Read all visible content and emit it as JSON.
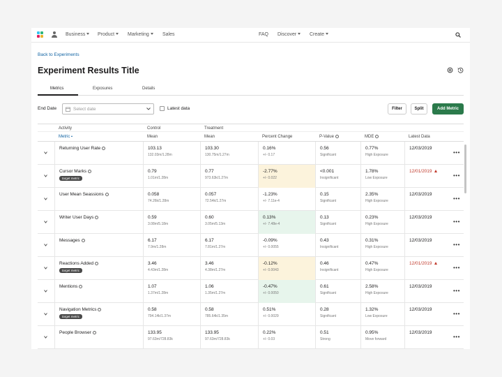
{
  "nav": {
    "left": [
      "Business",
      "Product",
      "Marketing",
      "Sales"
    ],
    "right": [
      "FAQ",
      "Discover",
      "Create"
    ],
    "logo_colors": [
      "#e01e5a",
      "#36c5f0",
      "#2eb67d",
      "#ecb22e"
    ]
  },
  "breadcrumb": "Back to Experiments",
  "page_title": "Experiment Results Title",
  "tabs": [
    "Metrics",
    "Exposures",
    "Details"
  ],
  "filters": {
    "end_date_label": "End Date",
    "date_placeholder": "Select date",
    "latest_data_label": "Latest data",
    "filter_label": "Filter",
    "split_label": "Split",
    "add_metric_label": "Add Metric"
  },
  "table": {
    "groups": [
      "Activity",
      "Control",
      "Treatment"
    ],
    "headers": [
      "Metric",
      "Mean",
      "Mean",
      "Percent Change",
      "P-Value",
      "MDE",
      "Latest Data"
    ],
    "badge_text": "target metric",
    "rows": [
      {
        "metric": "Returning User Rate",
        "target": false,
        "c_mean": "103.13",
        "c_sub": "132.03m/1.28m",
        "t_mean": "103.30",
        "t_sub": "130.75m/1.27m",
        "pct": "0.16%",
        "pct_sub": "+/- 0.17",
        "pct_state": "none",
        "p": "0.56",
        "p_sub": "Significant",
        "mde": "0.77%",
        "mde_sub": "High Exposure",
        "date": "12/03/2019",
        "date_warn": false
      },
      {
        "metric": "Cursor Marks",
        "target": true,
        "c_mean": "0.79",
        "c_sub": "1.01m/1.28m",
        "t_mean": "0.77",
        "t_sub": "973.63k/1.27m",
        "pct": "-2.77%",
        "pct_sub": "+/- 0.022",
        "pct_state": "warn",
        "p": "<0.001",
        "p_sub": "Insignificant",
        "mde": "1.78%",
        "mde_sub": "Low Exposure",
        "date": "12/01/2019",
        "date_warn": true
      },
      {
        "metric": "User Mean Seassions",
        "target": false,
        "c_mean": "0.058",
        "c_sub": "74.26k/1.28m",
        "t_mean": "0.057",
        "t_sub": "72.54k/1.27m",
        "pct": "-1.23%",
        "pct_sub": "+/- 7.11e-4",
        "pct_state": "none",
        "p": "0.15",
        "p_sub": "Significant",
        "mde": "2.35%",
        "mde_sub": "High Exposure",
        "date": "12/03/2019",
        "date_warn": false
      },
      {
        "metric": "Writer User Days",
        "target": false,
        "c_mean": "0.59",
        "c_sub": "3.08m/5.18m",
        "t_mean": "0.60",
        "t_sub": "3.05m/5.13m",
        "pct": "0.13%",
        "pct_sub": "+/- 7.48e-4",
        "pct_state": "good",
        "p": "0.13",
        "p_sub": "Significant",
        "mde": "0.23%",
        "mde_sub": "High Exposure",
        "date": "12/03/2019",
        "date_warn": false
      },
      {
        "metric": "Messages",
        "target": false,
        "c_mean": "6.17",
        "c_sub": "7.9m/1.28m",
        "t_mean": "6.17",
        "t_sub": "7.81m/1.27m",
        "pct": "-0.09%",
        "pct_sub": "+/- 0.0055",
        "pct_state": "none",
        "p": "0.43",
        "p_sub": "Insignificant",
        "mde": "0.31%",
        "mde_sub": "High Exposure",
        "date": "12/03/2019",
        "date_warn": false
      },
      {
        "metric": "Reactions Added",
        "target": true,
        "c_mean": "3.46",
        "c_sub": "4.43m/1.28m",
        "t_mean": "3.46",
        "t_sub": "4.38m/1.27m",
        "pct": "-0.12%",
        "pct_sub": "+/- 0.0043",
        "pct_state": "warn",
        "p": "0.46",
        "p_sub": "Insignificant",
        "mde": "0.47%",
        "mde_sub": "High Exposure",
        "date": "12/01/2019",
        "date_warn": true
      },
      {
        "metric": "Mentions",
        "target": false,
        "c_mean": "1.07",
        "c_sub": "1.37m/1.28m",
        "t_mean": "1.06",
        "t_sub": "1.35m/1.27m",
        "pct": "-0.47%",
        "pct_sub": "+/- 0.0050",
        "pct_state": "good",
        "p": "0.61",
        "p_sub": "Significant",
        "mde": "2.58%",
        "mde_sub": "High Exposure",
        "date": "12/03/2019",
        "date_warn": false
      },
      {
        "metric": "Navigation Metrics",
        "target": true,
        "c_mean": "0.58",
        "c_sub": "794.14k/1.37m",
        "t_mean": "0.58",
        "t_sub": "785.64k/1.35m",
        "pct": "0.51%",
        "pct_sub": "+/- 0.0029",
        "pct_state": "none",
        "p": "0.28",
        "p_sub": "Significant",
        "mde": "1.32%",
        "mde_sub": "Low Exposure",
        "date": "12/03/2019",
        "date_warn": false
      },
      {
        "metric": "People Browser",
        "target": false,
        "c_mean": "133.95",
        "c_sub": "97.63m/728.83k",
        "t_mean": "133.95",
        "t_sub": "97.63m/728.83k",
        "pct": "0.22%",
        "pct_sub": "+/- 0.03",
        "pct_state": "none",
        "p": "0.51",
        "p_sub": "Strong",
        "mde": "0.95%",
        "mde_sub": "Move forward",
        "date": "12/03/2019",
        "date_warn": false
      }
    ]
  }
}
